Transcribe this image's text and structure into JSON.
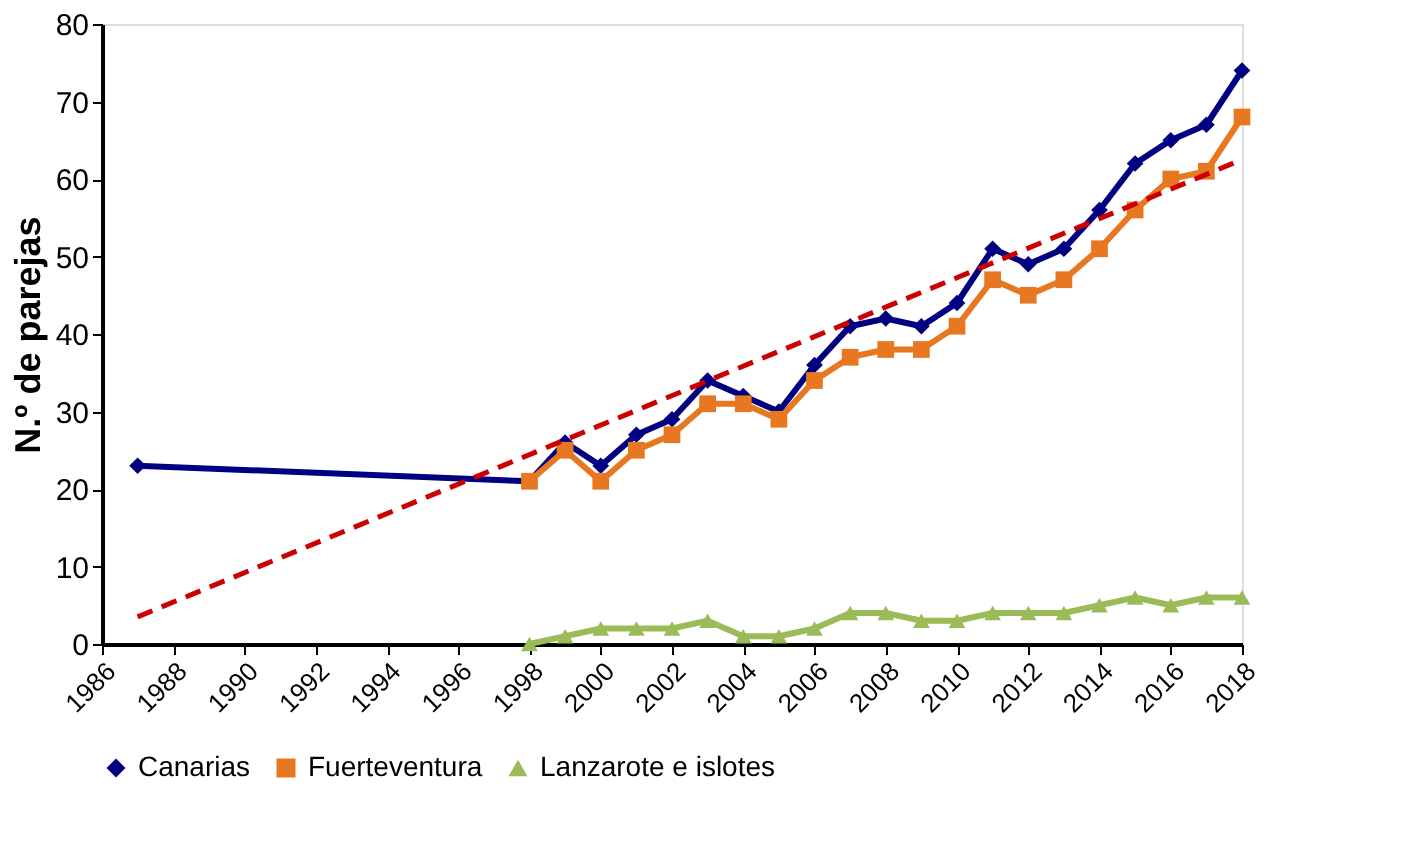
{
  "chart_data": {
    "type": "line",
    "ylabel": "N.º de parejas",
    "xlim": [
      1986,
      2018
    ],
    "xticks": [
      1986,
      1988,
      1990,
      1992,
      1994,
      1996,
      1998,
      2000,
      2002,
      2004,
      2006,
      2008,
      2010,
      2012,
      2014,
      2016,
      2018
    ],
    "ylim": [
      0,
      80
    ],
    "yticks": [
      0,
      10,
      20,
      30,
      40,
      50,
      60,
      70,
      80
    ],
    "grid": false,
    "legend": "bottom",
    "series": [
      {
        "name": "Canarias",
        "color": "#000080",
        "marker": "diamond",
        "x": [
          1987,
          1998,
          1999,
          2000,
          2001,
          2002,
          2003,
          2004,
          2005,
          2006,
          2007,
          2008,
          2009,
          2010,
          2011,
          2012,
          2013,
          2014,
          2015,
          2016,
          2017,
          2018
        ],
        "values": [
          23,
          21,
          26,
          23,
          27,
          29,
          34,
          32,
          30,
          36,
          41,
          42,
          41,
          44,
          51,
          49,
          51,
          56,
          62,
          65,
          67,
          74
        ]
      },
      {
        "name": "Fuerteventura",
        "color": "#e87722",
        "marker": "square",
        "x": [
          1998,
          1999,
          2000,
          2001,
          2002,
          2003,
          2004,
          2005,
          2006,
          2007,
          2008,
          2009,
          2010,
          2011,
          2012,
          2013,
          2014,
          2015,
          2016,
          2017,
          2018
        ],
        "values": [
          21,
          25,
          21,
          25,
          27,
          31,
          31,
          29,
          34,
          37,
          38,
          38,
          41,
          47,
          45,
          47,
          51,
          56,
          60,
          61,
          68
        ]
      },
      {
        "name": "Lanzarote e islotes",
        "color": "#9bbb59",
        "marker": "triangle",
        "x": [
          1998,
          1999,
          2000,
          2001,
          2002,
          2003,
          2004,
          2005,
          2006,
          2007,
          2008,
          2009,
          2010,
          2011,
          2012,
          2013,
          2014,
          2015,
          2016,
          2017,
          2018
        ],
        "values": [
          0,
          1,
          2,
          2,
          2,
          3,
          1,
          1,
          2,
          4,
          4,
          3,
          3,
          4,
          4,
          4,
          5,
          6,
          5,
          6,
          6
        ]
      },
      {
        "color": "#cc0000",
        "marker": "none",
        "line_style": "dashed",
        "x": [
          1987,
          2018
        ],
        "values": [
          3.5,
          62.5
        ]
      }
    ]
  }
}
